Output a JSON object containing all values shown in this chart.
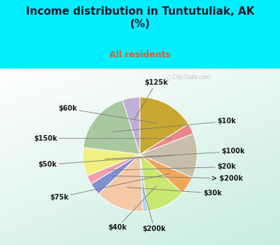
{
  "title": "Income distribution in Tuntutuliak, AK\n(%)",
  "subtitle": "All residents",
  "title_color": "#1a1a2e",
  "subtitle_color": "#cc6633",
  "background_color": "#00eeff",
  "labels": [
    "$125k",
    "$10k",
    "$100k",
    "$20k",
    "> $200k",
    "$30k",
    "$200k",
    "$40k",
    "$75k",
    "$50k",
    "$150k",
    "$60k"
  ],
  "sizes": [
    5.0,
    18.0,
    8.0,
    2.5,
    3.5,
    13.5,
    1.5,
    11.0,
    5.0,
    12.5,
    3.0,
    16.0
  ],
  "colors": [
    "#c0b0d8",
    "#a8c8a0",
    "#f0f080",
    "#f0a0b0",
    "#8090d0",
    "#f5c8a8",
    "#b0d8f0",
    "#c8e870",
    "#f0a858",
    "#c8bfaa",
    "#e88888",
    "#c8a830"
  ],
  "startangle": 90,
  "label_fontsize": 7,
  "title_fontsize": 11,
  "subtitle_fontsize": 9,
  "label_color": "#1a1a1a"
}
